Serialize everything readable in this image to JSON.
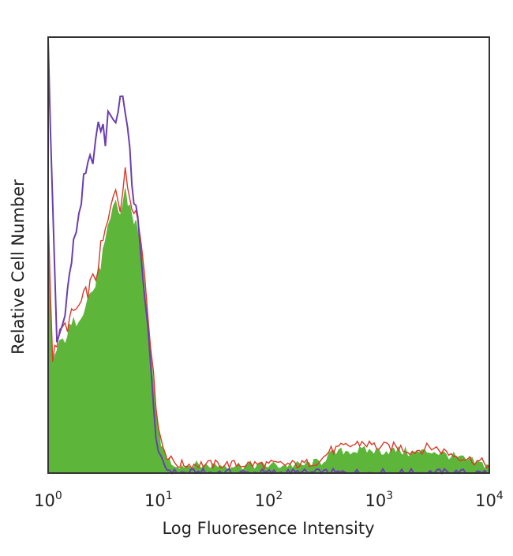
{
  "chart_data": {
    "type": "area",
    "title": "",
    "xlabel": "Log Fluoresence Intensity",
    "ylabel": "Relative Cell Number",
    "xscale": "log",
    "xlim": [
      1,
      10000
    ],
    "ylim": [
      0,
      1
    ],
    "grid": false,
    "x_ticks": [
      {
        "base": "10",
        "exp": "0"
      },
      {
        "base": "10",
        "exp": "1"
      },
      {
        "base": "10",
        "exp": "2"
      },
      {
        "base": "10",
        "exp": "3"
      },
      {
        "base": "10",
        "exp": "4"
      }
    ],
    "series": [
      {
        "style": "line",
        "color": "#6a3fb0",
        "x": [
          1.0,
          1.1,
          1.2,
          1.35,
          1.5,
          1.7,
          1.9,
          2.1,
          2.4,
          2.7,
          3.0,
          3.3,
          3.7,
          4.1,
          4.5,
          5.0,
          5.5,
          6.0,
          6.5,
          7.0,
          7.5,
          8.0,
          8.5,
          9.0,
          9.5,
          10.0,
          10.5,
          11.0,
          12.0,
          14.0,
          10000
        ],
        "values": [
          1.0,
          0.6,
          0.3,
          0.34,
          0.42,
          0.52,
          0.6,
          0.66,
          0.71,
          0.76,
          0.8,
          0.77,
          0.84,
          0.8,
          0.87,
          0.85,
          0.72,
          0.63,
          0.57,
          0.48,
          0.42,
          0.34,
          0.24,
          0.15,
          0.09,
          0.05,
          0.03,
          0.02,
          0.01,
          0.0,
          0.0
        ]
      },
      {
        "style": "line",
        "color": "#d93a2b",
        "x": [
          1.0,
          1.1,
          1.2,
          1.35,
          1.5,
          1.7,
          1.9,
          2.1,
          2.4,
          2.7,
          3.0,
          3.3,
          3.7,
          4.1,
          4.5,
          5.0,
          5.5,
          6.0,
          6.5,
          7.0,
          7.5,
          8.0,
          8.5,
          9.0,
          9.5,
          10.0,
          10.5,
          11.0,
          12.0,
          13.0,
          14.0,
          15.0,
          17.0,
          20.0,
          40.0,
          100.0,
          200.0,
          300.0,
          350.0,
          500.0,
          700.0,
          1000.0,
          1500.0,
          2000.0,
          3000.0,
          5000.0,
          7000.0,
          10000
        ],
        "values": [
          0.6,
          0.26,
          0.3,
          0.33,
          0.34,
          0.37,
          0.38,
          0.4,
          0.43,
          0.45,
          0.51,
          0.55,
          0.6,
          0.66,
          0.62,
          0.68,
          0.64,
          0.62,
          0.58,
          0.53,
          0.46,
          0.38,
          0.3,
          0.22,
          0.16,
          0.11,
          0.08,
          0.06,
          0.04,
          0.03,
          0.025,
          0.02,
          0.02,
          0.02,
          0.02,
          0.02,
          0.02,
          0.03,
          0.05,
          0.06,
          0.07,
          0.06,
          0.06,
          0.05,
          0.06,
          0.04,
          0.03,
          0.02
        ]
      },
      {
        "style": "filled",
        "color": "#5db63a",
        "x": [
          1.0,
          1.1,
          1.2,
          1.35,
          1.5,
          1.7,
          1.9,
          2.1,
          2.4,
          2.7,
          3.0,
          3.3,
          3.7,
          4.1,
          4.5,
          5.0,
          5.5,
          6.0,
          6.5,
          7.0,
          7.5,
          8.0,
          8.5,
          9.0,
          9.5,
          10.0,
          10.5,
          11.0,
          12.0,
          13.0,
          14.0,
          15.0,
          17.0,
          20.0,
          40.0,
          100.0,
          200.0,
          300.0,
          350.0,
          500.0,
          700.0,
          1000.0,
          1500.0,
          2000.0,
          3000.0,
          5000.0,
          7000.0,
          10000
        ],
        "values": [
          0.55,
          0.25,
          0.28,
          0.3,
          0.32,
          0.34,
          0.36,
          0.38,
          0.41,
          0.43,
          0.48,
          0.52,
          0.57,
          0.62,
          0.59,
          0.64,
          0.61,
          0.58,
          0.55,
          0.5,
          0.43,
          0.35,
          0.27,
          0.19,
          0.14,
          0.1,
          0.07,
          0.05,
          0.035,
          0.025,
          0.02,
          0.017,
          0.017,
          0.017,
          0.017,
          0.017,
          0.017,
          0.025,
          0.04,
          0.05,
          0.05,
          0.05,
          0.05,
          0.045,
          0.05,
          0.035,
          0.025,
          0.015
        ]
      }
    ]
  }
}
